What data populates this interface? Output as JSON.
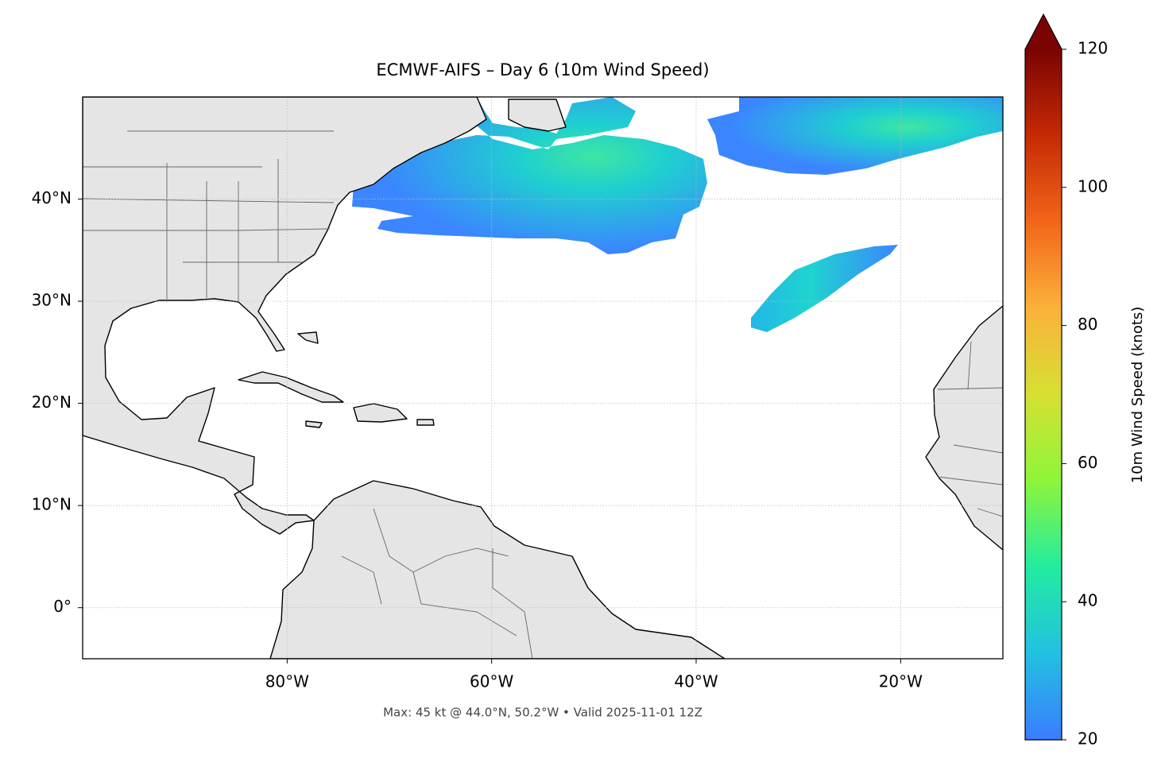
{
  "map": {
    "title": "ECMWF-AIFS – Day 6 (10m Wind Speed)",
    "footnote": "Max: 45 kt @ 44.0°N, 50.2°W • Valid 2025-11-01 12Z",
    "xlim": [
      -100,
      -10
    ],
    "ylim": [
      -5,
      50
    ],
    "xticks": [
      {
        "value": -80,
        "label": "80°W"
      },
      {
        "value": -60,
        "label": "60°W"
      },
      {
        "value": -40,
        "label": "40°W"
      },
      {
        "value": -20,
        "label": "20°W"
      }
    ],
    "yticks": [
      {
        "value": 0,
        "label": "0°"
      },
      {
        "value": 10,
        "label": "10°N"
      },
      {
        "value": 20,
        "label": "20°N"
      },
      {
        "value": 30,
        "label": "30°N"
      },
      {
        "value": 40,
        "label": "40°N"
      }
    ],
    "grid": true,
    "colorbar": {
      "label": "10m Wind Speed (knots)",
      "lim": [
        20,
        120
      ],
      "ticks": [
        20,
        40,
        60,
        80,
        100,
        120
      ],
      "extend": "max",
      "colors": [
        "#3b7cff",
        "#22c1e0",
        "#22eca0",
        "#8ef53a",
        "#d6e032",
        "#fbb13a",
        "#f2661a",
        "#c52a04",
        "#7a0403"
      ]
    }
  }
}
